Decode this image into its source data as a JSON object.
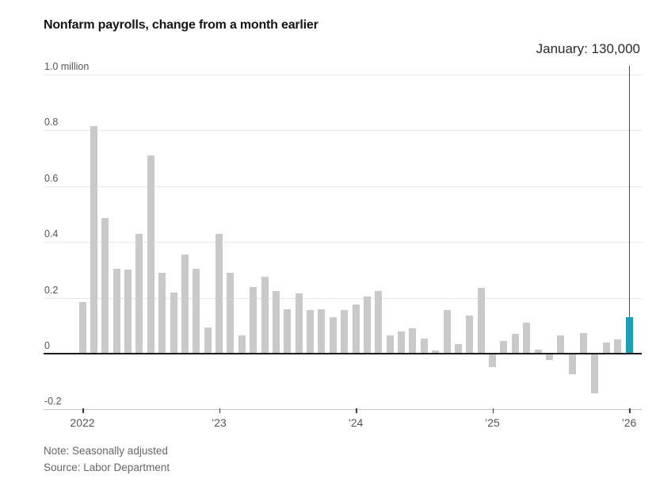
{
  "title": "Nonfarm payrolls, change from a month earlier",
  "annotation": {
    "text": "January: 130,000",
    "line_month_index": 48,
    "line_top_y": 83
  },
  "note": "Note: Seasonally adjusted",
  "source": "Source: Labor Department",
  "colors": {
    "bar": "#c9c9c9",
    "highlight": "#1a9fb4",
    "grid": "#e7e7e7",
    "zero_line": "#1c1c1c",
    "bottom_axis": "#c8c8c8",
    "axis_text": "#555555",
    "annotation_line": "#4a4a4a",
    "title_text": "#141414",
    "note_text": "#666666"
  },
  "y_axis": {
    "min": -0.2,
    "max": 1.0,
    "labels": [
      {
        "value": 1.0,
        "label": "1.0 million"
      },
      {
        "value": 0.8,
        "label": "0.8"
      },
      {
        "value": 0.6,
        "label": "0.6"
      },
      {
        "value": 0.4,
        "label": "0.4"
      },
      {
        "value": 0.2,
        "label": "0.2"
      },
      {
        "value": 0,
        "label": "0"
      },
      {
        "value": -0.2,
        "label": "-0.2"
      }
    ]
  },
  "x_axis": {
    "ticks": [
      {
        "month_index": 0,
        "label": "2022"
      },
      {
        "month_index": 12,
        "label": "’23"
      },
      {
        "month_index": 24,
        "label": "’24"
      },
      {
        "month_index": 36,
        "label": "’25"
      },
      {
        "month_index": 48,
        "label": "’26"
      }
    ]
  },
  "chart_data": {
    "type": "bar",
    "title": "Nonfarm payrolls, change from a month earlier",
    "unit": "million",
    "ylim": [
      -0.2,
      1.0
    ],
    "grid": "horizontal",
    "highlight_index": 48,
    "highlight_label": "January: 130,000",
    "x": [
      "Jan 2022",
      "Feb 2022",
      "Mar 2022",
      "Apr 2022",
      "May 2022",
      "Jun 2022",
      "Jul 2022",
      "Aug 2022",
      "Sep 2022",
      "Oct 2022",
      "Nov 2022",
      "Dec 2022",
      "Jan 2023",
      "Feb 2023",
      "Mar 2023",
      "Apr 2023",
      "May 2023",
      "Jun 2023",
      "Jul 2023",
      "Aug 2023",
      "Sep 2023",
      "Oct 2023",
      "Nov 2023",
      "Dec 2023",
      "Jan 2024",
      "Feb 2024",
      "Mar 2024",
      "Apr 2024",
      "May 2024",
      "Jun 2024",
      "Jul 2024",
      "Aug 2024",
      "Sep 2024",
      "Oct 2024",
      "Nov 2024",
      "Dec 2024",
      "Jan 2025",
      "Feb 2025",
      "Mar 2025",
      "Apr 2025",
      "May 2025",
      "Jun 2025",
      "Jul 2025",
      "Aug 2025",
      "Sep 2025",
      "Oct 2025",
      "Nov 2025",
      "Dec 2025",
      "Jan 2026"
    ],
    "values": [
      0.185,
      0.815,
      0.485,
      0.305,
      0.3,
      0.43,
      0.71,
      0.29,
      0.22,
      0.355,
      0.305,
      0.095,
      0.43,
      0.29,
      0.065,
      0.24,
      0.275,
      0.225,
      0.16,
      0.215,
      0.155,
      0.16,
      0.13,
      0.155,
      0.175,
      0.205,
      0.225,
      0.065,
      0.08,
      0.09,
      0.055,
      0.01,
      0.155,
      0.035,
      0.135,
      0.235,
      -0.045,
      0.045,
      0.07,
      0.11,
      0.015,
      -0.02,
      0.065,
      -0.07,
      0.075,
      -0.14,
      0.04,
      0.05,
      0.13
    ]
  }
}
